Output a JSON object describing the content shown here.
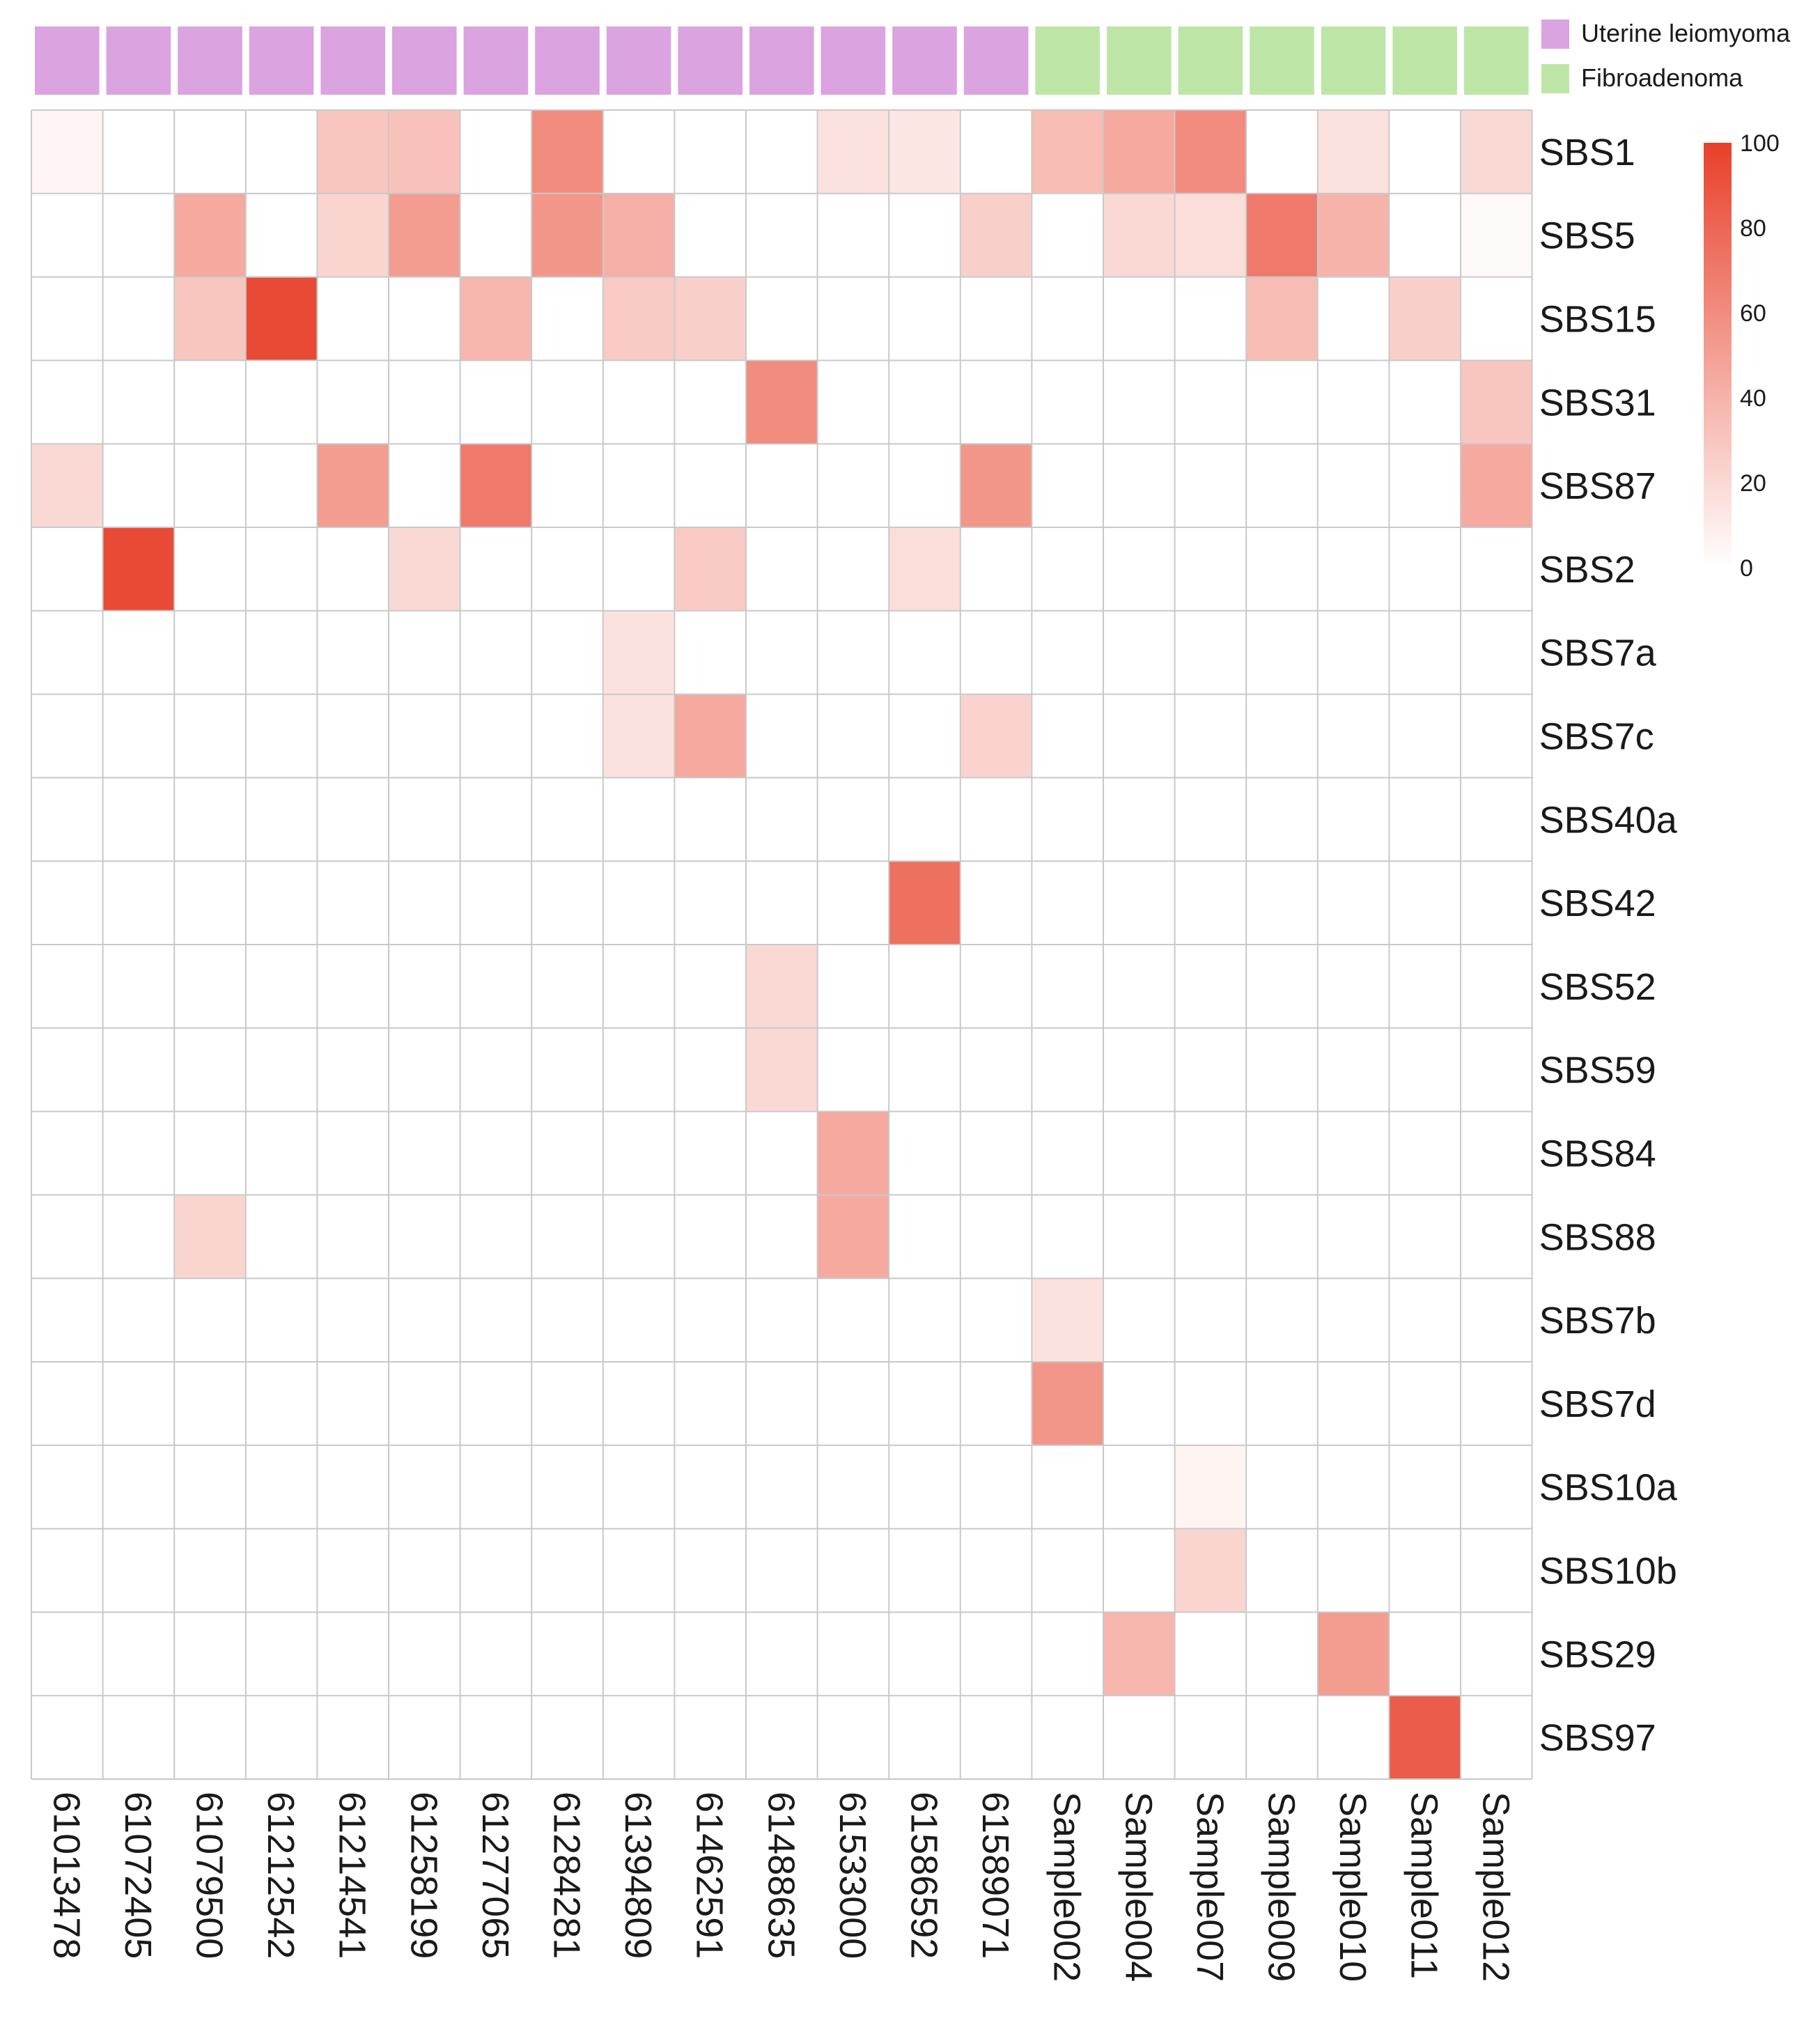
{
  "chart_data": {
    "type": "heatmap",
    "title": "",
    "columns": [
      "61013478",
      "61072405",
      "61079500",
      "61212542",
      "61214541",
      "61258199",
      "61277065",
      "61284281",
      "61394809",
      "61462591",
      "61488635",
      "61533000",
      "61586592",
      "61589071",
      "Sample002",
      "Sample004",
      "Sample007",
      "Sample009",
      "Sample010",
      "Sample011",
      "Sample012"
    ],
    "column_groups": [
      "Uterine leiomyoma",
      "Uterine leiomyoma",
      "Uterine leiomyoma",
      "Uterine leiomyoma",
      "Uterine leiomyoma",
      "Uterine leiomyoma",
      "Uterine leiomyoma",
      "Uterine leiomyoma",
      "Uterine leiomyoma",
      "Uterine leiomyoma",
      "Uterine leiomyoma",
      "Uterine leiomyoma",
      "Uterine leiomyoma",
      "Uterine leiomyoma",
      "Fibroadenoma",
      "Fibroadenoma",
      "Fibroadenoma",
      "Fibroadenoma",
      "Fibroadenoma",
      "Fibroadenoma",
      "Fibroadenoma"
    ],
    "rows": [
      "SBS1",
      "SBS5",
      "SBS15",
      "SBS31",
      "SBS87",
      "SBS2",
      "SBS7a",
      "SBS7c",
      "SBS40a",
      "SBS42",
      "SBS52",
      "SBS59",
      "SBS84",
      "SBS88",
      "SBS7b",
      "SBS7d",
      "SBS10a",
      "SBS10b",
      "SBS29",
      "SBS97"
    ],
    "values": [
      [
        5,
        0,
        0,
        0,
        30,
        32,
        0,
        60,
        0,
        0,
        0,
        15,
        13,
        0,
        35,
        45,
        60,
        0,
        15,
        0,
        20
      ],
      [
        0,
        0,
        45,
        0,
        22,
        52,
        0,
        55,
        42,
        0,
        0,
        0,
        0,
        25,
        0,
        20,
        18,
        70,
        40,
        0,
        3
      ],
      [
        0,
        0,
        30,
        95,
        0,
        0,
        38,
        0,
        28,
        25,
        0,
        0,
        0,
        0,
        0,
        0,
        0,
        35,
        0,
        25,
        0
      ],
      [
        0,
        0,
        0,
        0,
        0,
        0,
        0,
        0,
        0,
        0,
        60,
        0,
        0,
        0,
        0,
        0,
        0,
        0,
        0,
        0,
        30
      ],
      [
        20,
        0,
        0,
        0,
        52,
        0,
        70,
        0,
        0,
        0,
        0,
        0,
        0,
        55,
        0,
        0,
        0,
        0,
        0,
        0,
        45
      ],
      [
        0,
        95,
        0,
        0,
        0,
        20,
        0,
        0,
        0,
        28,
        0,
        0,
        18,
        0,
        0,
        0,
        0,
        0,
        0,
        0,
        0
      ],
      [
        0,
        0,
        0,
        0,
        0,
        0,
        0,
        0,
        15,
        0,
        0,
        0,
        0,
        0,
        0,
        0,
        0,
        0,
        0,
        0,
        0
      ],
      [
        0,
        0,
        0,
        0,
        0,
        0,
        0,
        0,
        15,
        45,
        0,
        0,
        0,
        23,
        0,
        0,
        0,
        0,
        0,
        0,
        0
      ],
      [
        0,
        0,
        0,
        0,
        0,
        0,
        0,
        0,
        0,
        0,
        0,
        0,
        0,
        0,
        0,
        0,
        0,
        0,
        0,
        0,
        0
      ],
      [
        0,
        0,
        0,
        0,
        0,
        0,
        0,
        0,
        0,
        0,
        0,
        0,
        75,
        0,
        0,
        0,
        0,
        0,
        0,
        0,
        0
      ],
      [
        0,
        0,
        0,
        0,
        0,
        0,
        0,
        0,
        0,
        0,
        20,
        0,
        0,
        0,
        0,
        0,
        0,
        0,
        0,
        0,
        0
      ],
      [
        0,
        0,
        0,
        0,
        0,
        0,
        0,
        0,
        0,
        0,
        20,
        0,
        0,
        0,
        0,
        0,
        0,
        0,
        0,
        0,
        0
      ],
      [
        0,
        0,
        0,
        0,
        0,
        0,
        0,
        0,
        0,
        0,
        0,
        45,
        0,
        0,
        0,
        0,
        0,
        0,
        0,
        0,
        0
      ],
      [
        0,
        0,
        22,
        0,
        0,
        0,
        0,
        0,
        0,
        0,
        0,
        45,
        0,
        0,
        0,
        0,
        0,
        0,
        0,
        0,
        0
      ],
      [
        0,
        0,
        0,
        0,
        0,
        0,
        0,
        0,
        0,
        0,
        0,
        0,
        0,
        0,
        15,
        0,
        0,
        0,
        0,
        0,
        0
      ],
      [
        0,
        0,
        0,
        0,
        0,
        0,
        0,
        0,
        0,
        0,
        0,
        0,
        0,
        0,
        55,
        0,
        0,
        0,
        0,
        0,
        0
      ],
      [
        0,
        0,
        0,
        0,
        0,
        0,
        0,
        0,
        0,
        0,
        0,
        0,
        0,
        0,
        0,
        0,
        6,
        0,
        0,
        0,
        0
      ],
      [
        0,
        0,
        0,
        0,
        0,
        0,
        0,
        0,
        0,
        0,
        0,
        0,
        0,
        0,
        0,
        0,
        22,
        0,
        0,
        0,
        0
      ],
      [
        0,
        0,
        0,
        0,
        0,
        0,
        0,
        0,
        0,
        0,
        0,
        0,
        0,
        0,
        0,
        38,
        0,
        0,
        52,
        0,
        0
      ],
      [
        0,
        0,
        0,
        0,
        0,
        0,
        0,
        0,
        0,
        0,
        0,
        0,
        0,
        0,
        0,
        0,
        0,
        0,
        0,
        85,
        0
      ]
    ],
    "range": [
      0,
      100
    ],
    "colorbar_ticks": [
      0,
      20,
      40,
      60,
      80,
      100
    ],
    "color_low": "#ffffff",
    "color_high": "#e8402a",
    "legend": [
      {
        "label": "Uterine leiomyoma",
        "color": "#dba3e0"
      },
      {
        "label": "Fibroadenoma",
        "color": "#bde6a6"
      }
    ],
    "grid_color": "#c9c9c9",
    "xlabel": "",
    "ylabel": ""
  }
}
